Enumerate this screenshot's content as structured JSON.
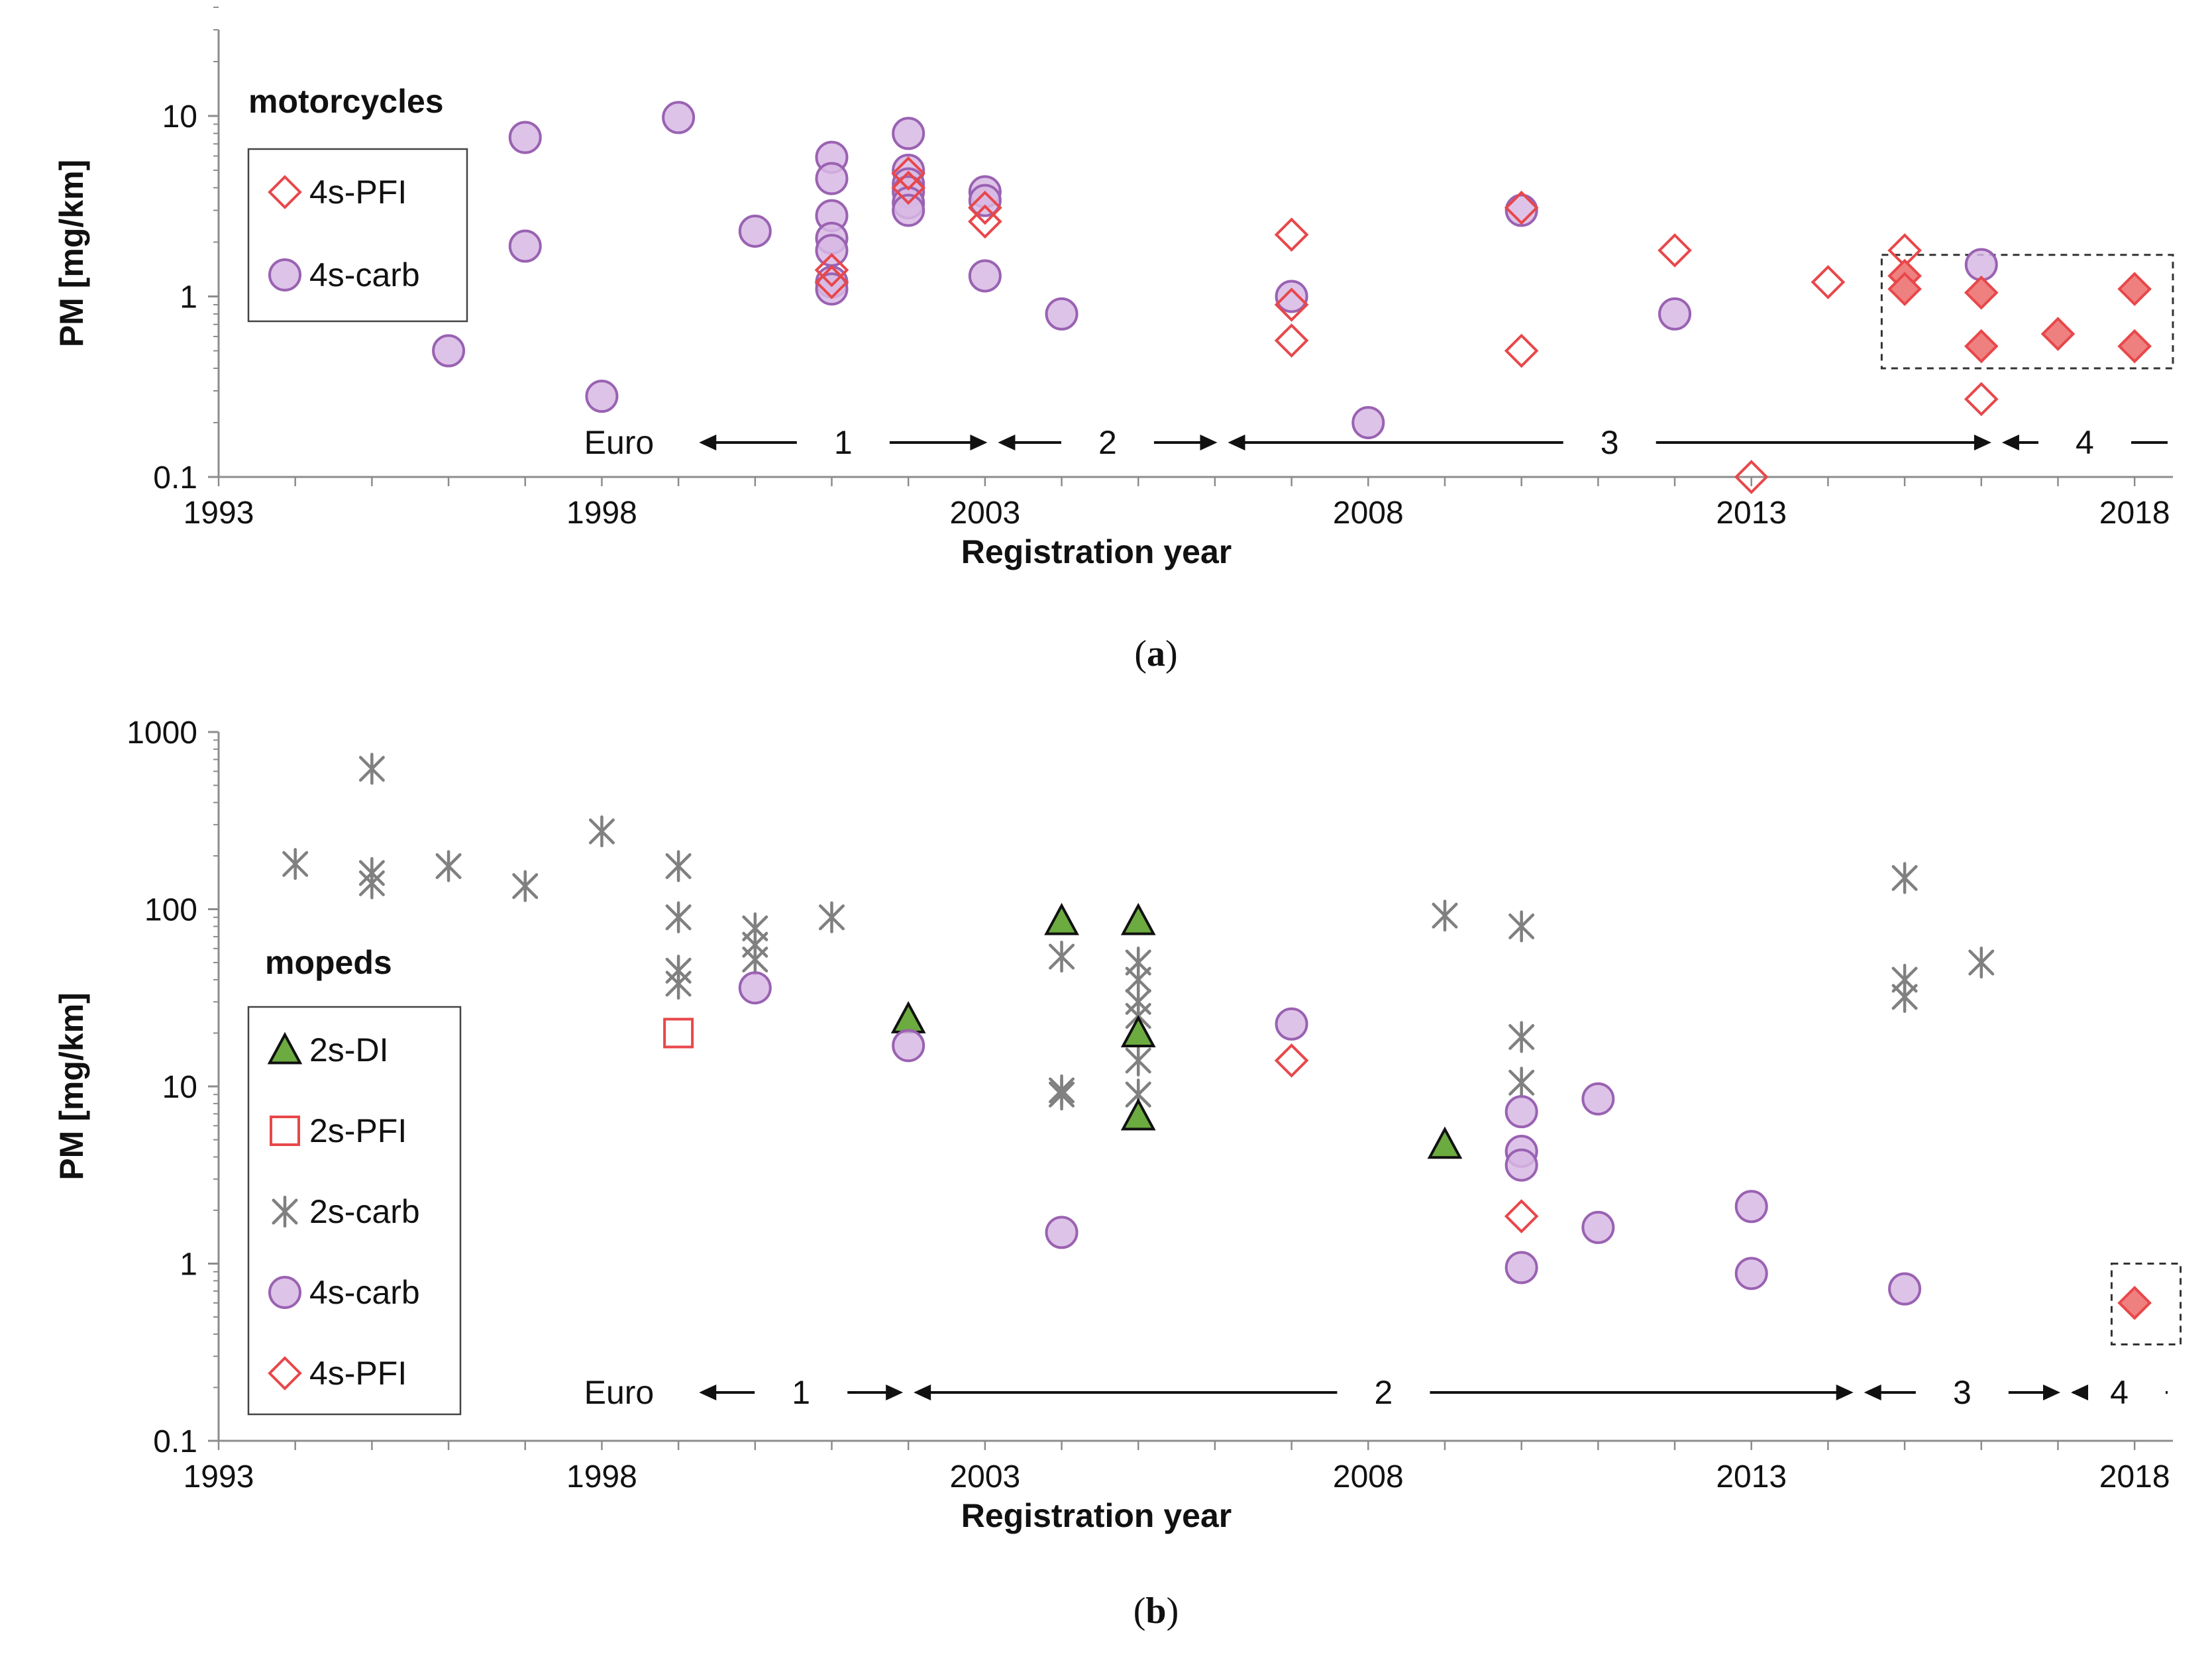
{
  "colors": {
    "pfi_red": "#e8474a",
    "pfi_fill": "#ef8080",
    "carb_purple_stroke": "#9a62b2",
    "carb_purple_fill": "#d8b8e4",
    "gray_star": "#808080",
    "di_green": "#6cab3f",
    "axis": "#8c8c8c"
  },
  "chart_data": [
    {
      "id": "a",
      "type": "scatter",
      "caption": "(a)",
      "caption_letter": "a",
      "ylabel": "PM [mg/km]",
      "xlabel": "Registration year",
      "yscale": "log",
      "ylim": [
        0.1,
        30
      ],
      "xlim": [
        1993,
        2018.5
      ],
      "xticks": [
        "1993",
        "1998",
        "2003",
        "2008",
        "2013",
        "2018"
      ],
      "yticks": [
        "0.1",
        "1",
        "10"
      ],
      "legend": {
        "title": "motorcycles",
        "placement": "top-left",
        "entries": [
          {
            "label": "4s-PFI",
            "marker": "diamond-open"
          },
          {
            "label": "4s-carb",
            "marker": "circle"
          }
        ]
      },
      "euro_label": "Euro",
      "euro_stages": [
        {
          "label": "1",
          "from": 1999.2,
          "to": 2003.1
        },
        {
          "label": "2",
          "from": 2003.1,
          "to": 2006.1
        },
        {
          "label": "3",
          "from": 2006.1,
          "to": 2016.2
        },
        {
          "label": "4",
          "from": 2016.2,
          "to": 2018.5
        }
      ],
      "highlight_box": {
        "x": [
          2014.7,
          2018.5
        ],
        "y": [
          0.4,
          1.7
        ]
      },
      "series": [
        {
          "name": "4s-carb",
          "marker": "circle",
          "x": [
            1996,
            1997,
            1997,
            1998,
            1999,
            2000,
            2001,
            2001,
            2001,
            2001,
            2001,
            2001,
            2001,
            2002,
            2002,
            2002,
            2002,
            2002,
            2002,
            2003,
            2003,
            2003,
            2004,
            2007,
            2008,
            2010,
            2012,
            2016
          ],
          "y": [
            0.5,
            7.6,
            1.9,
            0.28,
            9.8,
            2.3,
            5.9,
            4.5,
            2.8,
            2.1,
            1.8,
            1.2,
            1.1,
            8.0,
            5.0,
            4.2,
            3.8,
            3.3,
            3.0,
            3.8,
            3.4,
            1.3,
            0.8,
            1.0,
            0.2,
            3.0,
            0.8,
            1.5
          ]
        },
        {
          "name": "4s-PFI",
          "marker": "diamond-open",
          "x": [
            2001,
            2001,
            2002,
            2002,
            2003,
            2003,
            2007,
            2007,
            2007,
            2010,
            2010,
            2012,
            2013,
            2014,
            2015,
            2016
          ],
          "y": [
            1.4,
            1.2,
            4.8,
            4.0,
            3.1,
            2.6,
            2.2,
            0.9,
            0.57,
            3.1,
            0.5,
            1.8,
            0.1,
            1.2,
            1.8,
            0.27
          ]
        },
        {
          "name": "4s-PFI (Euro 4)",
          "marker": "diamond-filled",
          "x": [
            2015,
            2015,
            2016,
            2016,
            2017,
            2018,
            2018
          ],
          "y": [
            1.3,
            1.1,
            1.05,
            0.53,
            0.62,
            1.1,
            0.53
          ]
        }
      ]
    },
    {
      "id": "b",
      "type": "scatter",
      "caption": "(b)",
      "caption_letter": "b",
      "ylabel": "PM [mg/km]",
      "xlabel": "Registration year",
      "yscale": "log",
      "ylim": [
        0.1,
        1000
      ],
      "xlim": [
        1993,
        2018.5
      ],
      "xticks": [
        "1993",
        "1998",
        "2003",
        "2008",
        "2013",
        "2018"
      ],
      "yticks": [
        "0.1",
        "1",
        "10",
        "100",
        "1000"
      ],
      "legend": {
        "title": "mopeds",
        "placement": "middle-left",
        "entries": [
          {
            "label": "2s-DI",
            "marker": "triangle"
          },
          {
            "label": "2s-PFI",
            "marker": "square-open"
          },
          {
            "label": "2s-carb",
            "marker": "star"
          },
          {
            "label": "4s-carb",
            "marker": "circle"
          },
          {
            "label": "4s-PFI",
            "marker": "diamond-open"
          }
        ]
      },
      "euro_label": "Euro",
      "euro_stages": [
        {
          "label": "1",
          "from": 1999.2,
          "to": 2002.0
        },
        {
          "label": "2",
          "from": 2002.0,
          "to": 2014.4
        },
        {
          "label": "3",
          "from": 2014.4,
          "to": 2017.1
        },
        {
          "label": "4",
          "from": 2017.1,
          "to": 2018.5
        }
      ],
      "highlight_box": {
        "x": [
          2017.7,
          2018.6
        ],
        "y": [
          0.35,
          1.0
        ]
      },
      "series": [
        {
          "name": "2s-carb",
          "marker": "star",
          "x": [
            1994,
            1995,
            1995,
            1995,
            1996,
            1997,
            1998,
            1999,
            1999,
            1999,
            1999,
            2000,
            2000,
            2000,
            2001,
            2004,
            2004,
            2004,
            2005,
            2005,
            2005,
            2005,
            2005,
            2005,
            2009,
            2010,
            2010,
            2010,
            2015,
            2015,
            2015,
            2016
          ],
          "y": [
            180,
            620,
            160,
            140,
            175,
            135,
            275,
            175,
            90,
            45,
            38,
            78,
            63,
            52,
            90,
            54,
            9.5,
            9,
            50,
            40,
            30,
            25,
            14,
            9,
            92,
            80,
            19,
            10.5,
            150,
            40,
            32,
            50
          ]
        },
        {
          "name": "2s-DI",
          "marker": "triangle",
          "x": [
            2002,
            2004,
            2005,
            2005,
            2005,
            2009
          ],
          "y": [
            24,
            86,
            86,
            20,
            6.8,
            4.7
          ]
        },
        {
          "name": "2s-PFI",
          "marker": "square-open",
          "x": [
            1999
          ],
          "y": [
            20
          ]
        },
        {
          "name": "4s-carb",
          "marker": "circle",
          "x": [
            2000,
            2002,
            2004,
            2007,
            2010,
            2010,
            2010,
            2010,
            2011,
            2011,
            2013,
            2013,
            2015
          ],
          "y": [
            36,
            17,
            1.5,
            22.5,
            7.2,
            4.3,
            3.6,
            0.95,
            8.5,
            1.6,
            2.1,
            0.88,
            0.72
          ]
        },
        {
          "name": "4s-PFI",
          "marker": "diamond-open",
          "x": [
            2007,
            2010
          ],
          "y": [
            14,
            1.85
          ]
        },
        {
          "name": "4s-PFI (Euro 4)",
          "marker": "diamond-filled",
          "x": [
            2018
          ],
          "y": [
            0.6
          ]
        }
      ]
    }
  ]
}
